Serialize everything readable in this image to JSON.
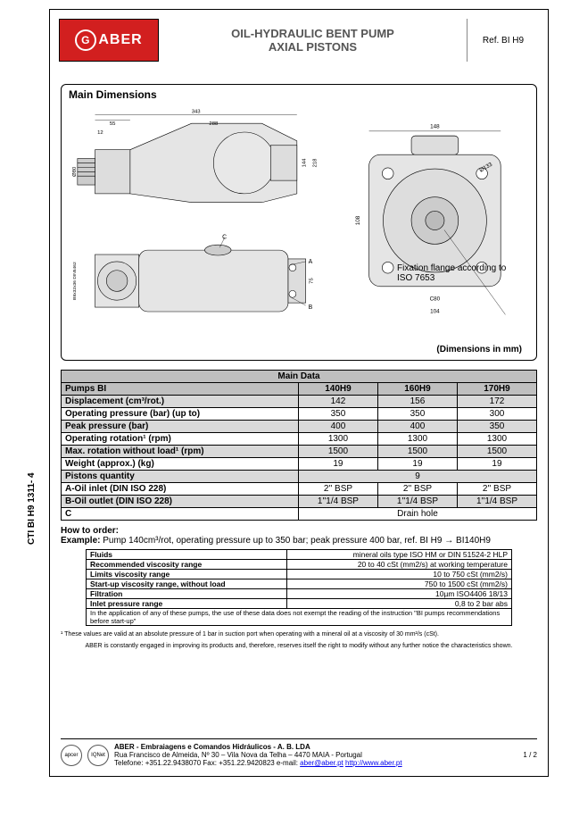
{
  "sideways_code": "CTI BI H9 1311- 4",
  "header": {
    "logo_text": "ABER",
    "title_line1": "OIL-HYDRAULIC BENT PUMP",
    "title_line2": "AXIAL PISTONS",
    "ref": "Ref. BI H9"
  },
  "colors": {
    "logo_bg": "#d21f1f",
    "table_hdr_bg": "#bfbfbf",
    "table_odd_bg": "#d9d9d9"
  },
  "dimensions_box": {
    "title": "Main Dimensions",
    "units_note": "(Dimensions in mm)",
    "flange_note": "Fixation flange according to ISO 7653",
    "callouts": {
      "top_total": "343",
      "top_offset": "55",
      "top_mid": "288",
      "top_small": "12",
      "height": "144",
      "height2": "218",
      "front_width": "148",
      "front_inner": "108",
      "front_bolt": "C80",
      "front_base": "104",
      "diam": "Ø80",
      "diam2": "Ø133",
      "spline": "B8x32x36 DIN5462",
      "side_h": "75",
      "labels": {
        "A": "A",
        "B": "B",
        "C": "C"
      }
    }
  },
  "main_data": {
    "title": "Main Data",
    "columns": [
      "Pumps BI",
      "140H9",
      "160H9",
      "170H9"
    ],
    "rows": [
      {
        "label": "Displacement (cm³/rot.)",
        "v": [
          "142",
          "156",
          "172"
        ],
        "odd": true
      },
      {
        "label": "Operating pressure  (bar) (up to)",
        "v": [
          "350",
          "350",
          "300"
        ],
        "odd": false
      },
      {
        "label": "Peak pressure (bar)",
        "v": [
          "400",
          "400",
          "350"
        ],
        "odd": true
      },
      {
        "label": "Operating rotation¹ (rpm)",
        "v": [
          "1300",
          "1300",
          "1300"
        ],
        "odd": false
      },
      {
        "label": "Max. rotation without load¹ (rpm)",
        "v": [
          "1500",
          "1500",
          "1500"
        ],
        "odd": true
      },
      {
        "label": "Weight (approx.) (kg)",
        "v": [
          "19",
          "19",
          "19"
        ],
        "odd": false
      },
      {
        "label": "Pistons quantity",
        "span": "9",
        "odd": true
      },
      {
        "label": "A-Oil inlet (DIN ISO 228)",
        "v": [
          "2'' BSP",
          "2'' BSP",
          "2'' BSP"
        ],
        "odd": false
      },
      {
        "label": "B-Oil outlet (DIN ISO 228)",
        "v": [
          "1''1/4 BSP",
          "1''1/4 BSP",
          "1''1/4 BSP"
        ],
        "odd": true
      },
      {
        "label": "C",
        "span": "Drain hole",
        "odd": false
      }
    ]
  },
  "ordering": {
    "title": "How to order:",
    "example_label": "Example:",
    "example_text_1": "  Pump 140cm³/rot, operating pressure up to 350 bar; peak pressure 400 bar, ref. BI H9 ",
    "arrow": "→",
    "example_text_2": " BI140H9"
  },
  "fluids": {
    "rows": [
      [
        "Fluids",
        "mineral oils type ISO HM or DIN 51524-2 HLP"
      ],
      [
        "Recommended viscosity range",
        "20 to 40 cSt (mm2/s) at working temperature"
      ],
      [
        "Limits viscosity range",
        "10 to 750 cSt (mm2/s)"
      ],
      [
        "Start-up viscosity range, without load",
        "750 to 1500 cSt (mm2/s)"
      ],
      [
        "Filtration",
        "10µm ISO4406 18/13"
      ],
      [
        "Inlet pressure range",
        "0,8 to 2 bar abs"
      ]
    ],
    "note": "In the application of any of these pumps, the use of these data does not exempt the reading of the instruction \"BI pumps recommendations before start-up\""
  },
  "footnote": "¹ These values are valid at an absolute pressure of 1 bar in suction port when operating with a mineral oil at a viscosity of 30 mm²/s (cSt).",
  "disclaimer": "ABER is constantly engaged in improving its products and, therefore, reserves itself the right to modify without any further notice the characteristics shown.",
  "footer": {
    "cert1": "apcer",
    "cert2": "IQNet",
    "company": "ABER - Embraiagens e Comandos Hidráulicos - A. B.  LDA",
    "addr": "Rua Francisco de Almeida, Nº 30 – Vila Nova da Telha – 4470 MAIA - Portugal",
    "tel": "Telefone: +351.22.9438070   Fax: +351.22.9420823  e-mail: ",
    "email": "aber@aber.pt",
    "sep": "   ",
    "url": "http://www.aber.pt",
    "page": "1 / 2"
  }
}
